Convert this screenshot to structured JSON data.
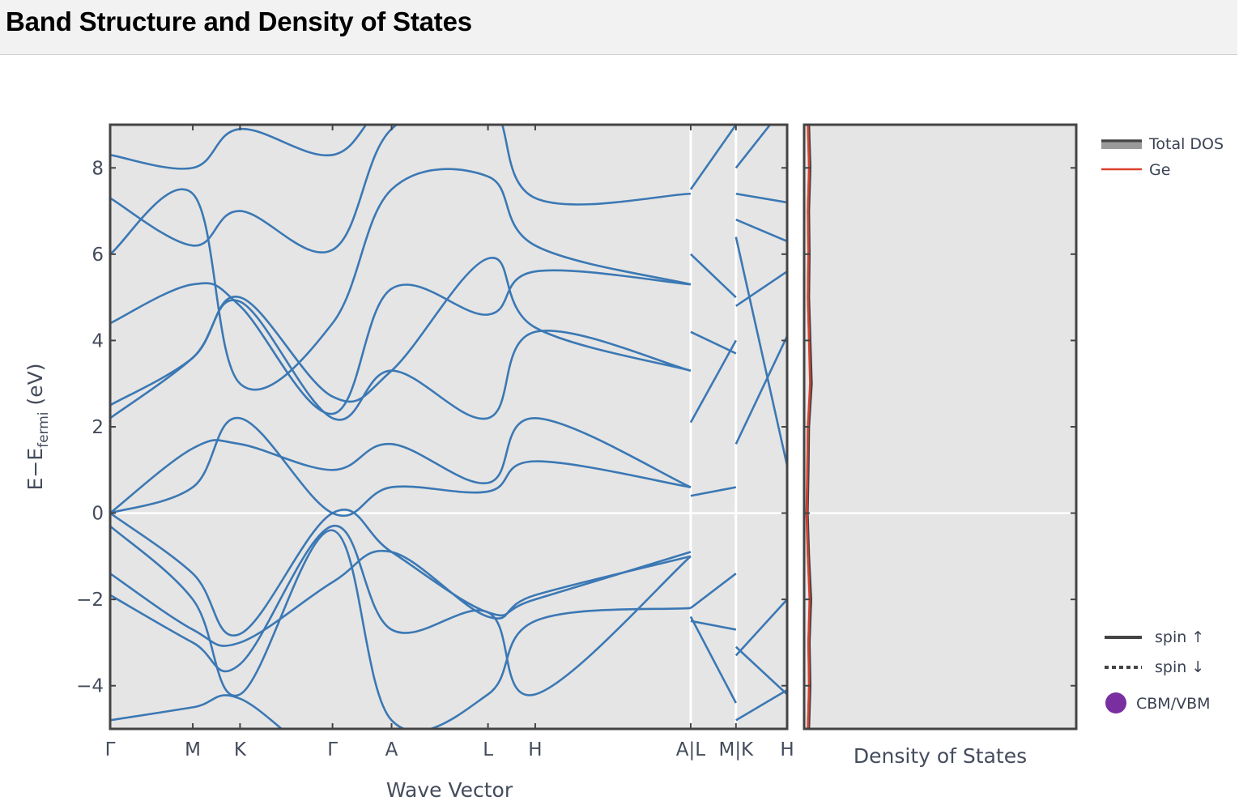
{
  "page": {
    "title": "Band Structure and Density of States"
  },
  "chart_data": {
    "type": "line",
    "colors": {
      "band": "#3b78b4",
      "ge": "#d9402f",
      "total_dos": "#444444",
      "cbm_vbm": "#7a2fa0",
      "plot_bg": "#e5e5e5"
    },
    "band_structure": {
      "xlabel": "Wave Vector",
      "ylabel_main": "E−E",
      "ylabel_sub": "fermi",
      "ylabel_unit": " (eV)",
      "ylim": [
        -5,
        9
      ],
      "yticks": [
        -4,
        -2,
        0,
        2,
        4,
        6,
        8
      ],
      "ytick_labels": [
        "−4",
        "−2",
        "0",
        "2",
        "4",
        "6",
        "8"
      ],
      "kpath": [
        {
          "label": "Γ",
          "x": 0
        },
        {
          "label": "M",
          "x": 0.42
        },
        {
          "label": "K",
          "x": 0.66
        },
        {
          "label": "Γ",
          "x": 1.13
        },
        {
          "label": "A",
          "x": 1.43
        },
        {
          "label": "L",
          "x": 1.92
        },
        {
          "label": "H",
          "x": 2.16
        },
        {
          "label": "A|L",
          "x": 2.95
        },
        {
          "label": "M|K",
          "x": 3.18
        },
        {
          "label": "H",
          "x": 3.44
        }
      ],
      "breaks": [
        2.95,
        3.18
      ],
      "xlim": [
        0,
        3.44
      ],
      "segments": [
        {
          "x": [
            0,
            0.42,
            0.66,
            1.13,
            1.43,
            1.92,
            2.16,
            2.95
          ],
          "bands": [
            [
              -4.8,
              -4.5,
              -4.3,
              -5.8,
              -5.2,
              -6,
              -6,
              -5.2
            ],
            [
              -1.4,
              -2.7,
              -3.0,
              -1.6,
              -0.9,
              -2.4,
              -1.9,
              -1.0
            ],
            [
              -1.9,
              -3.0,
              -3.5,
              -0.3,
              -2.7,
              -2.3,
              -4.2,
              -1.0
            ],
            [
              -0.3,
              -2.0,
              -4.2,
              -0.4,
              -4.8,
              -4.2,
              -2.5,
              -2.2
            ],
            [
              0.0,
              -1.4,
              -2.8,
              0.0,
              -0.9,
              -2.3,
              -2.0,
              -0.9
            ],
            [
              0.0,
              0.6,
              2.2,
              0.0,
              0.6,
              0.5,
              1.2,
              0.6
            ],
            [
              0.0,
              1.5,
              1.6,
              1.0,
              1.6,
              0.7,
              2.2,
              0.6
            ],
            [
              2.2,
              3.6,
              4.9,
              2.2,
              3.3,
              2.2,
              4.2,
              3.3
            ],
            [
              2.5,
              3.6,
              5.0,
              2.7,
              3.3,
              5.9,
              4.3,
              3.3
            ],
            [
              4.4,
              5.3,
              4.8,
              2.3,
              5.2,
              4.6,
              5.6,
              5.3
            ],
            [
              6.0,
              7.4,
              3.0,
              4.4,
              7.5,
              7.8,
              6.2,
              5.3
            ],
            [
              7.3,
              6.2,
              7.0,
              6.1,
              8.9,
              9.5,
              7.3,
              7.4
            ],
            [
              8.3,
              8.0,
              8.9,
              8.3,
              9.5,
              9.5,
              9.5,
              9.5
            ]
          ]
        },
        {
          "x": [
            2.95,
            3.18
          ],
          "bands": [
            [
              -2.2,
              -1.4
            ],
            [
              -2.5,
              -2.7
            ],
            [
              -2.4,
              -4.4
            ],
            [
              0.4,
              0.6
            ],
            [
              2.1,
              4.0
            ],
            [
              4.2,
              3.7
            ],
            [
              6.0,
              5.0
            ],
            [
              7.5,
              9.0
            ]
          ]
        },
        {
          "x": [
            3.18,
            3.44
          ],
          "bands": [
            [
              -3.3,
              -2.0
            ],
            [
              -4.8,
              -4.1
            ],
            [
              -3.1,
              -4.2
            ],
            [
              1.6,
              4.1
            ],
            [
              4.8,
              5.6
            ],
            [
              6.4,
              1.1
            ],
            [
              6.8,
              6.3
            ],
            [
              7.4,
              7.2
            ],
            [
              8.0,
              9.5
            ]
          ]
        }
      ]
    },
    "dos": {
      "xlabel": "Density of States",
      "series": [
        {
          "name": "Total DOS",
          "energy": [
            -5,
            -4,
            -3,
            -2,
            -1,
            0,
            1,
            2,
            3,
            4,
            5,
            6,
            7,
            8,
            9
          ],
          "values": [
            0.1,
            0.15,
            0.12,
            0.18,
            0.1,
            0.05,
            0.08,
            0.1,
            0.2,
            0.15,
            0.1,
            0.12,
            0.1,
            0.15,
            0.1
          ]
        },
        {
          "name": "Ge",
          "energy": [
            -5,
            -4,
            -3,
            -2,
            -1,
            0,
            1,
            2,
            3,
            4,
            5,
            6,
            7,
            8,
            9
          ],
          "values": [
            0.08,
            0.12,
            0.1,
            0.14,
            0.08,
            0.04,
            0.06,
            0.08,
            0.16,
            0.12,
            0.08,
            0.1,
            0.08,
            0.12,
            0.08
          ]
        }
      ],
      "xlim": [
        0,
        10
      ]
    },
    "legend": {
      "top": [
        "Total DOS",
        "Ge"
      ],
      "bottom": [
        "spin ↑",
        "spin ↓",
        "CBM/VBM"
      ],
      "placement": "right"
    }
  }
}
